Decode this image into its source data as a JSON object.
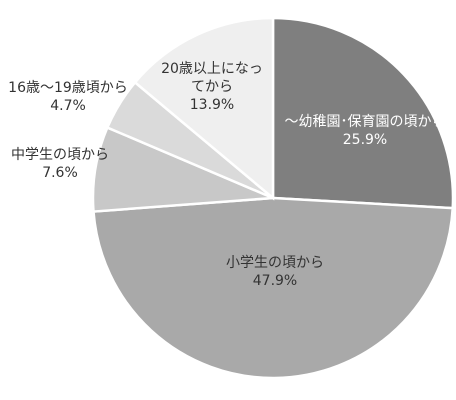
{
  "chart_data": {
    "type": "pie",
    "slices": [
      {
        "label": "～幼稚園･保育園の頃から",
        "value": 25.9,
        "value_text": "25.9%",
        "color": "#7f7f7f",
        "text_color": "#ffffff"
      },
      {
        "label": "小学生の頃から",
        "value": 47.9,
        "value_text": "47.9%",
        "color": "#a9a9a9",
        "text_color": "#333333"
      },
      {
        "label": "中学生の頃から",
        "value": 7.6,
        "value_text": "7.6%",
        "color": "#c8c8c8",
        "text_color": "#333333"
      },
      {
        "label": "16歳～19歳頃から",
        "value": 4.7,
        "value_text": "4.7%",
        "color": "#dadada",
        "text_color": "#333333"
      },
      {
        "label": "20歳以上になってから",
        "value": 13.9,
        "value_text": "13.9%",
        "color": "#efefef",
        "text_color": "#333333"
      }
    ],
    "start_angle": "12 o'clock",
    "direction": "clockwise",
    "legend": "none"
  }
}
